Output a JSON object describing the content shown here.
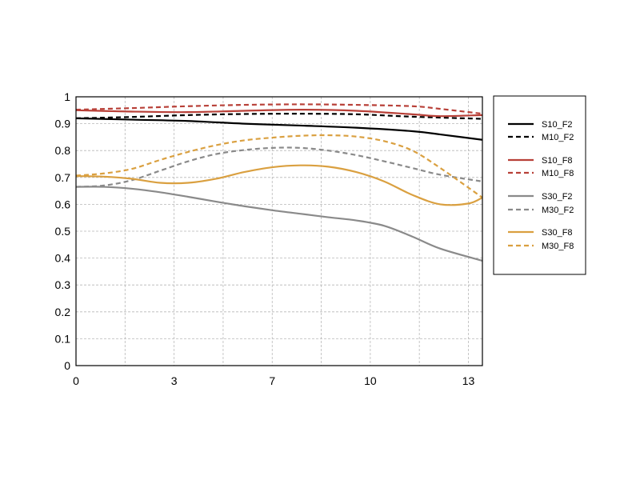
{
  "chart_data": {
    "type": "line",
    "title": "",
    "xlabel": "",
    "ylabel": "",
    "xlim": [
      0,
      14.5
    ],
    "ylim": [
      0,
      1
    ],
    "x_ticks": [
      {
        "value": 0,
        "label": "0"
      },
      {
        "value": 3.5,
        "label": "3"
      },
      {
        "value": 7,
        "label": "7"
      },
      {
        "value": 10.5,
        "label": "10"
      },
      {
        "value": 14,
        "label": "13"
      }
    ],
    "x_grid": [
      0,
      1.75,
      3.5,
      5.25,
      7,
      8.75,
      10.5,
      12.25,
      14,
      14.5
    ],
    "y_ticks": [
      {
        "value": 0,
        "label": "0"
      },
      {
        "value": 0.1,
        "label": "0.1"
      },
      {
        "value": 0.2,
        "label": "0.2"
      },
      {
        "value": 0.3,
        "label": "0.3"
      },
      {
        "value": 0.4,
        "label": "0.4"
      },
      {
        "value": 0.5,
        "label": "0.5"
      },
      {
        "value": 0.6,
        "label": "0.6"
      },
      {
        "value": 0.7,
        "label": "0.7"
      },
      {
        "value": 0.8,
        "label": "0.8"
      },
      {
        "value": 0.9,
        "label": "0.9"
      },
      {
        "value": 1,
        "label": "1"
      }
    ],
    "grid": true,
    "legend_position": "right",
    "series": [
      {
        "name": "S10_F2",
        "color": "#000000",
        "dash": false,
        "x": [
          0,
          2,
          4,
          6,
          8,
          10,
          12,
          13,
          14.5
        ],
        "y": [
          0.92,
          0.915,
          0.91,
          0.9,
          0.893,
          0.885,
          0.872,
          0.86,
          0.84
        ]
      },
      {
        "name": "M10_F2",
        "color": "#000000",
        "dash": true,
        "x": [
          0,
          2,
          4,
          6,
          8,
          10,
          12,
          14.5
        ],
        "y": [
          0.92,
          0.925,
          0.932,
          0.936,
          0.937,
          0.935,
          0.926,
          0.918
        ]
      },
      {
        "name": "S10_F8",
        "color": "#b84038",
        "dash": false,
        "x": [
          0,
          2,
          4,
          6,
          8,
          10,
          12,
          13,
          14.5
        ],
        "y": [
          0.95,
          0.945,
          0.943,
          0.948,
          0.952,
          0.948,
          0.935,
          0.928,
          0.932
        ]
      },
      {
        "name": "M10_F8",
        "color": "#b84038",
        "dash": true,
        "x": [
          0,
          2,
          4,
          6,
          8,
          10,
          12,
          13,
          14.5
        ],
        "y": [
          0.952,
          0.958,
          0.965,
          0.97,
          0.972,
          0.97,
          0.965,
          0.955,
          0.937
        ]
      },
      {
        "name": "S30_F2",
        "color": "#8a8a8a",
        "dash": false,
        "x": [
          0,
          1,
          2,
          3,
          4,
          5,
          6,
          7,
          8,
          9,
          10,
          11,
          12,
          13,
          14.5
        ],
        "y": [
          0.665,
          0.665,
          0.658,
          0.645,
          0.628,
          0.61,
          0.593,
          0.578,
          0.565,
          0.552,
          0.54,
          0.52,
          0.48,
          0.435,
          0.39
        ]
      },
      {
        "name": "M30_F2",
        "color": "#8a8a8a",
        "dash": true,
        "x": [
          0,
          1,
          2,
          3,
          4,
          5,
          6,
          7,
          8,
          9,
          10,
          11,
          12,
          13,
          14.5
        ],
        "y": [
          0.665,
          0.67,
          0.69,
          0.725,
          0.76,
          0.787,
          0.802,
          0.81,
          0.81,
          0.8,
          0.783,
          0.76,
          0.735,
          0.71,
          0.685
        ]
      },
      {
        "name": "S30_F8",
        "color": "#daa040",
        "dash": false,
        "x": [
          0,
          1,
          2,
          3,
          4,
          5,
          6,
          7,
          8,
          9,
          10,
          11,
          12,
          13,
          14,
          14.5
        ],
        "y": [
          0.705,
          0.703,
          0.695,
          0.68,
          0.68,
          0.695,
          0.72,
          0.738,
          0.745,
          0.74,
          0.72,
          0.685,
          0.635,
          0.6,
          0.603,
          0.625
        ]
      },
      {
        "name": "M30_F8",
        "color": "#daa040",
        "dash": true,
        "x": [
          0,
          1,
          2,
          3,
          4,
          5,
          6,
          7,
          8,
          9,
          10,
          11,
          12,
          13,
          14.5
        ],
        "y": [
          0.707,
          0.715,
          0.732,
          0.765,
          0.795,
          0.82,
          0.838,
          0.848,
          0.855,
          0.857,
          0.852,
          0.835,
          0.8,
          0.735,
          0.625
        ]
      }
    ]
  }
}
